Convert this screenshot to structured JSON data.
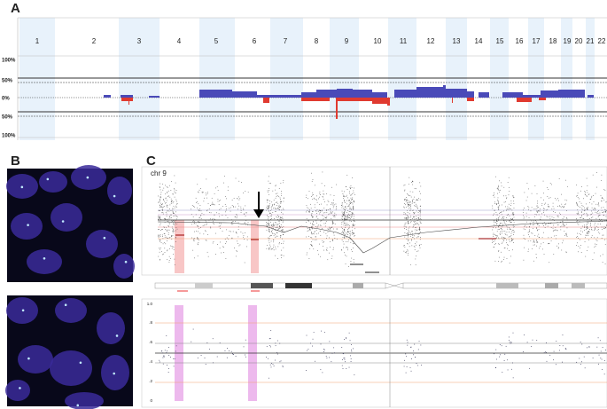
{
  "panels": {
    "A": {
      "label": "A",
      "chromosomes": [
        "1",
        "2",
        "3",
        "4",
        "5",
        "6",
        "7",
        "8",
        "9",
        "10",
        "11",
        "12",
        "13",
        "14",
        "15",
        "16",
        "17",
        "18",
        "19",
        "20",
        "21",
        "22"
      ],
      "percent_labels": [
        "100%",
        "50%",
        "0%",
        "50%",
        "100%"
      ]
    },
    "B": {
      "label": "B"
    },
    "C": {
      "label": "C",
      "chromosome": "chr 9",
      "lower_axis_labels": [
        "1.0",
        ".8",
        ".6",
        ".4",
        ".2",
        "0"
      ]
    }
  }
}
